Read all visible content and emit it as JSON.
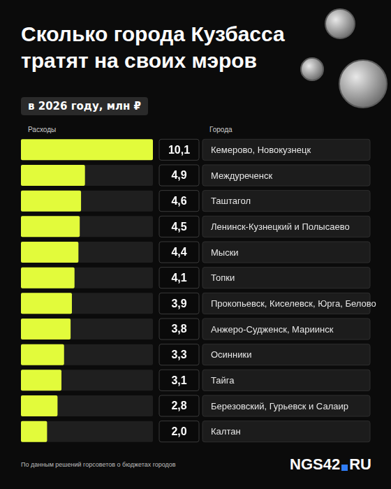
{
  "chart_data": {
    "type": "bar",
    "orientation": "horizontal",
    "title": "Сколько города Кузбасса тратят на своих мэров",
    "subtitle": "в 2026 году, млн ₽",
    "x_label": "Расходы",
    "y_label": "Города",
    "categories": [
      "Кемерово, Новокузнецк",
      "Междуреченск",
      "Таштагол",
      "Ленинск-Кузнецкий и Полысаево",
      "Мыски",
      "Топки",
      "Прокопьевск, Киселевск, Юрга, Белово",
      "Анжеро-Судженск, Мариинск",
      "Осинники",
      "Тайга",
      "Березовский, Гурьевск и Салаир",
      "Калтан"
    ],
    "values": [
      10.1,
      4.9,
      4.6,
      4.5,
      4.4,
      4.1,
      3.9,
      3.8,
      3.3,
      3.1,
      2.8,
      2.0
    ],
    "value_labels": [
      "10,1",
      "4,9",
      "4,6",
      "4,5",
      "4,4",
      "4,1",
      "3,9",
      "3,8",
      "3,3",
      "3,1",
      "2,8",
      "2,0"
    ],
    "data_labels": true,
    "color": "#e2fb3b",
    "xlim": [
      0,
      10.1
    ],
    "tick_labels": false,
    "grid": false,
    "source": "По данным решений горсоветов о бюджетах городов",
    "logo": [
      "NGS42",
      "RU"
    ]
  }
}
